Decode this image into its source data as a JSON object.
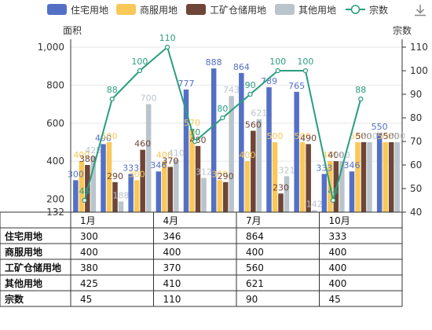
{
  "legend": {
    "items": [
      {
        "label": "住宅用地",
        "color": "#5470c6",
        "kind": "bar"
      },
      {
        "label": "商服用地",
        "color": "#fac858",
        "kind": "bar"
      },
      {
        "label": "工矿仓储用地",
        "color": "#6e4536",
        "kind": "bar"
      },
      {
        "label": "其他用地",
        "color": "#b9c4cc",
        "kind": "bar"
      },
      {
        "label": "宗数",
        "color": "#2a9d7f",
        "kind": "line"
      }
    ]
  },
  "toolbar": {
    "download_icon": "download-icon"
  },
  "chart_data": {
    "type": "bar",
    "y_left_title": "面积",
    "y_right_title": "宗数",
    "y_left_ticks": [
      "1,000",
      "800",
      "600",
      "400",
      "200",
      "132"
    ],
    "y_right_ticks": [
      "110",
      "100",
      "90",
      "80",
      "70",
      "60",
      "50",
      "40"
    ],
    "ylim_left": [
      132,
      1000
    ],
    "ylim_right": [
      40,
      110
    ],
    "x_labels": [
      "1月",
      "",
      "",
      "4月",
      "",
      "",
      "7月",
      "",
      "",
      "10月",
      "",
      ""
    ],
    "months": 12,
    "series": [
      {
        "name": "住宅用地",
        "color": "#5470c6",
        "values": [
          300,
          490,
          333,
          346,
          777,
          888,
          864,
          789,
          765,
          333,
          346,
          550
        ]
      },
      {
        "name": "商服用地",
        "color": "#fac858",
        "values": [
          400,
          500,
          300,
          400,
          570,
          300,
          400,
          500,
          500,
          400,
          500,
          500
        ]
      },
      {
        "name": "工矿仓储用地",
        "color": "#6e4536",
        "values": [
          380,
          290,
          460,
          370,
          480,
          290,
          560,
          230,
          490,
          400,
          500,
          500
        ]
      },
      {
        "name": "其他用地",
        "color": "#b9c4cc",
        "values": [
          425,
          188,
          700,
          410,
          312,
          743,
          621,
          321,
          142,
          400,
          500,
          500
        ]
      }
    ],
    "line": {
      "name": "宗数",
      "color": "#2a9d7f",
      "values": [
        45,
        88,
        100,
        110,
        70,
        80,
        90,
        100,
        100,
        45,
        88,
        null
      ]
    }
  },
  "table": {
    "columns": [
      "1月",
      "4月",
      "7月",
      "10月"
    ],
    "rows": [
      {
        "label": "住宅用地",
        "cells": [
          "300",
          "346",
          "864",
          "333"
        ]
      },
      {
        "label": "商服用地",
        "cells": [
          "400",
          "400",
          "400",
          "400"
        ]
      },
      {
        "label": "工矿仓储用地",
        "cells": [
          "380",
          "370",
          "560",
          "400"
        ]
      },
      {
        "label": "其他用地",
        "cells": [
          "425",
          "410",
          "621",
          "400"
        ]
      },
      {
        "label": "宗数",
        "cells": [
          "45",
          "110",
          "90",
          "45"
        ]
      }
    ]
  }
}
